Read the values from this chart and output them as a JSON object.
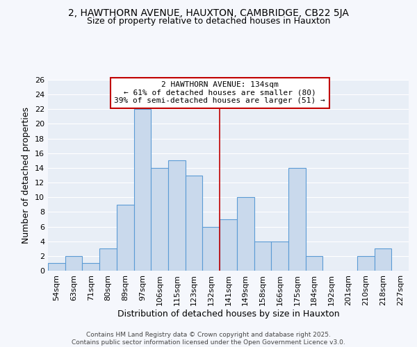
{
  "title1": "2, HAWTHORN AVENUE, HAUXTON, CAMBRIDGE, CB22 5JA",
  "title2": "Size of property relative to detached houses in Hauxton",
  "xlabel": "Distribution of detached houses by size in Hauxton",
  "ylabel": "Number of detached properties",
  "categories": [
    "54sqm",
    "63sqm",
    "71sqm",
    "80sqm",
    "89sqm",
    "97sqm",
    "106sqm",
    "115sqm",
    "123sqm",
    "132sqm",
    "141sqm",
    "149sqm",
    "158sqm",
    "166sqm",
    "175sqm",
    "184sqm",
    "192sqm",
    "201sqm",
    "210sqm",
    "218sqm",
    "227sqm"
  ],
  "values": [
    1,
    2,
    1,
    3,
    9,
    22,
    14,
    15,
    13,
    6,
    7,
    10,
    4,
    4,
    14,
    2,
    0,
    0,
    2,
    3,
    0
  ],
  "bar_color": "#c9d9ec",
  "bar_edge_color": "#5b9bd5",
  "vline_x_idx": 9.5,
  "vline_color": "#c00000",
  "annotation_text": "2 HAWTHORN AVENUE: 134sqm\n← 61% of detached houses are smaller (80)\n39% of semi-detached houses are larger (51) →",
  "annotation_box_color": "#c00000",
  "ylim": [
    0,
    26
  ],
  "yticks": [
    0,
    2,
    4,
    6,
    8,
    10,
    12,
    14,
    16,
    18,
    20,
    22,
    24,
    26
  ],
  "plot_bg_color": "#e8eef6",
  "fig_bg_color": "#f5f7fc",
  "grid_color": "#ffffff",
  "footer": "Contains HM Land Registry data © Crown copyright and database right 2025.\nContains public sector information licensed under the Open Government Licence v3.0.",
  "title_fontsize": 10,
  "subtitle_fontsize": 9,
  "axis_label_fontsize": 9,
  "tick_fontsize": 8,
  "annotation_fontsize": 8,
  "footer_fontsize": 6.5
}
